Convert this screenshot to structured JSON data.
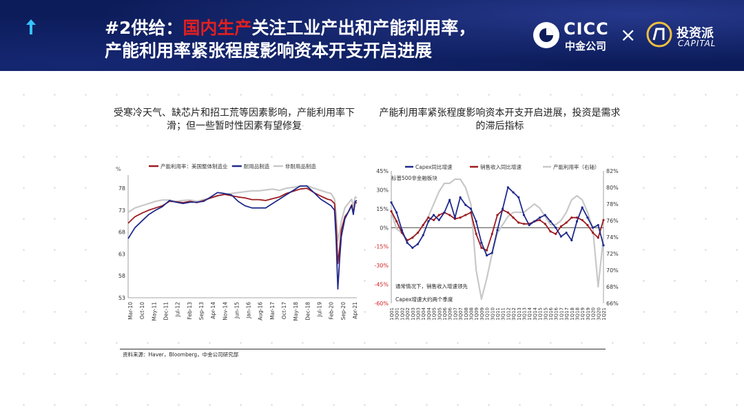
{
  "header": {
    "title_prefix": "#2供给：",
    "title_highlight": "国内生产",
    "title_rest": "关注工业产出和产能利用率，",
    "title_line2": "产能利用率紧张程度影响资本开支开启进展",
    "logo_cicc": "CICC",
    "logo_cicc_sub": "中金公司",
    "logo_times": "×",
    "logo_tzp": "投资派",
    "logo_tzp_sub": "CAPITAL"
  },
  "source_note": "资料来源：Haver，Bloomberg，中金公司研究部",
  "chart_data": [
    {
      "type": "line",
      "title": "受寒冷天气、缺芯片和招工荒等因素影响，产能利用率下滑；但一些暂时性因素有望修复",
      "ylabel": "%",
      "ylim": [
        53,
        81
      ],
      "yticks": [
        53,
        58,
        63,
        68,
        73,
        78
      ],
      "x_tick_labels": [
        "Mar-10",
        "Oct-10",
        "May-11",
        "Dec-11",
        "Jul-12",
        "Feb-13",
        "Sep-13",
        "Apr-14",
        "Nov-14",
        "Jun-15",
        "Jan-16",
        "Aug-16",
        "Mar-17",
        "Oct-17",
        "May-18",
        "Dec-18",
        "Jul-19",
        "Feb-20",
        "Sep-20",
        "Apr-21"
      ],
      "x_range": [
        2010.17,
        2021.25
      ],
      "grid": false,
      "legend": "top",
      "series": [
        {
          "name": "产能利用率：美国整体制造业",
          "color": "#9c1b1f",
          "x": [
            2010.17,
            2010.5,
            2010.83,
            2011.17,
            2011.5,
            2011.83,
            2012.17,
            2012.5,
            2012.83,
            2013.17,
            2013.5,
            2013.83,
            2014.17,
            2014.5,
            2014.83,
            2015.17,
            2015.5,
            2015.83,
            2016.17,
            2016.5,
            2016.83,
            2017.17,
            2017.5,
            2017.83,
            2018.17,
            2018.5,
            2018.83,
            2019.17,
            2019.5,
            2019.83,
            2020.0,
            2020.17,
            2020.25,
            2020.33,
            2020.42,
            2020.5,
            2020.67,
            2020.83,
            2021.0,
            2021.08,
            2021.17,
            2021.25
          ],
          "values": [
            70.0,
            71.5,
            72.3,
            73.0,
            73.5,
            74.0,
            75.0,
            74.9,
            74.7,
            75.0,
            74.7,
            75.2,
            75.8,
            76.3,
            76.6,
            76.3,
            76.0,
            75.8,
            75.4,
            75.4,
            75.2,
            75.6,
            76.0,
            76.8,
            77.3,
            77.8,
            78.0,
            77.0,
            76.2,
            75.5,
            75.3,
            74.5,
            69.0,
            60.8,
            64.5,
            68.5,
            71.5,
            72.5,
            74.2,
            72.5,
            74.8,
            74.6
          ]
        },
        {
          "name": "耐用品制造",
          "color": "#1f2a8c",
          "x": [
            2010.17,
            2010.5,
            2010.83,
            2011.17,
            2011.5,
            2011.83,
            2012.17,
            2012.5,
            2012.83,
            2013.17,
            2013.5,
            2013.83,
            2014.17,
            2014.5,
            2014.83,
            2015.17,
            2015.5,
            2015.83,
            2016.17,
            2016.5,
            2016.83,
            2017.17,
            2017.5,
            2017.83,
            2018.17,
            2018.5,
            2018.83,
            2019.17,
            2019.5,
            2019.83,
            2020.0,
            2020.17,
            2020.25,
            2020.33,
            2020.42,
            2020.5,
            2020.67,
            2020.83,
            2021.0,
            2021.08,
            2021.17,
            2021.25
          ],
          "values": [
            66.5,
            69.0,
            70.5,
            72.0,
            73.0,
            73.8,
            75.2,
            74.8,
            74.5,
            74.8,
            74.8,
            75.0,
            76.0,
            77.0,
            76.8,
            76.5,
            75.0,
            74.0,
            73.5,
            73.5,
            73.5,
            74.5,
            75.5,
            76.5,
            77.5,
            78.5,
            78.5,
            77.0,
            75.5,
            74.5,
            74.0,
            73.0,
            66.0,
            55.0,
            62.0,
            67.0,
            71.0,
            72.5,
            74.0,
            72.0,
            75.0,
            75.2
          ]
        },
        {
          "name": "非耐用品制造",
          "color": "#c8c8c8",
          "x": [
            2010.17,
            2010.5,
            2010.83,
            2011.17,
            2011.5,
            2011.83,
            2012.17,
            2012.5,
            2012.83,
            2013.17,
            2013.5,
            2013.83,
            2014.17,
            2014.5,
            2014.83,
            2015.17,
            2015.5,
            2015.83,
            2016.17,
            2016.5,
            2016.83,
            2017.17,
            2017.5,
            2017.83,
            2018.17,
            2018.5,
            2018.83,
            2019.17,
            2019.5,
            2019.83,
            2020.0,
            2020.17,
            2020.25,
            2020.33,
            2020.42,
            2020.5,
            2020.67,
            2020.83,
            2021.0,
            2021.08,
            2021.17,
            2021.25
          ],
          "values": [
            72.5,
            73.5,
            74.0,
            74.5,
            75.0,
            75.3,
            75.3,
            75.0,
            75.2,
            75.3,
            75.0,
            75.4,
            75.8,
            76.2,
            76.6,
            76.8,
            77.0,
            77.2,
            77.4,
            77.4,
            77.6,
            77.8,
            77.5,
            78.0,
            78.2,
            78.5,
            78.6,
            78.0,
            77.5,
            77.0,
            76.8,
            75.5,
            72.0,
            66.0,
            68.0,
            70.5,
            73.5,
            74.5,
            75.5,
            73.8,
            76.0,
            75.8
          ]
        }
      ]
    },
    {
      "type": "line",
      "title": "产能利用率紧张程度影响资本开支开启进展，投资是需求的滞后指标",
      "subtitle_label": "标普500非金融板块",
      "ylim": [
        -0.6,
        0.45
      ],
      "yticks": [
        "-60%",
        "-45%",
        "-30%",
        "-15%",
        "0%",
        "15%",
        "30%",
        "45%"
      ],
      "ylim_right": [
        0.66,
        0.82
      ],
      "yticks_right": [
        "66%",
        "68%",
        "70%",
        "72%",
        "74%",
        "76%",
        "78%",
        "80%",
        "82%"
      ],
      "x_tick_labels": [
        "1Q01",
        "3Q01",
        "1Q02",
        "3Q02",
        "1Q03",
        "3Q03",
        "1Q04",
        "3Q04",
        "1Q05",
        "3Q05",
        "1Q06",
        "3Q06",
        "1Q07",
        "3Q07",
        "1Q08",
        "3Q08",
        "1Q09",
        "3Q09",
        "1Q10",
        "3Q10",
        "1Q11",
        "3Q11",
        "1Q12",
        "3Q12",
        "1Q13",
        "3Q13",
        "1Q14",
        "3Q14",
        "1Q15",
        "3Q15",
        "1Q16",
        "3Q16",
        "1Q17",
        "3Q17",
        "1Q18",
        "3Q18",
        "1Q19",
        "3Q19",
        "1Q20",
        "3Q20",
        "1Q21"
      ],
      "grid": false,
      "legend": "top",
      "annotations": [
        "通常情况下，销售收入增速领先",
        "Capex增速大约两个季度"
      ],
      "series": [
        {
          "name": "Capex同比增速",
          "axis": "left",
          "color": "#1f2a8c",
          "values": [
            0.2,
            0.12,
            -0.02,
            -0.12,
            -0.16,
            -0.13,
            -0.06,
            0.05,
            0.1,
            0.06,
            0.12,
            0.22,
            0.08,
            0.24,
            0.18,
            0.15,
            0.05,
            -0.12,
            -0.22,
            -0.2,
            -0.02,
            0.15,
            0.32,
            0.28,
            0.24,
            0.1,
            0.02,
            0.05,
            0.08,
            0.1,
            0.05,
            0.0,
            -0.07,
            -0.04,
            -0.1,
            0.05,
            0.16,
            0.08,
            0.0,
            0.02,
            -0.14
          ]
        },
        {
          "name": "销售收入同比增速",
          "axis": "left",
          "color": "#9c1b1f",
          "values": [
            0.13,
            0.05,
            -0.04,
            -0.1,
            -0.08,
            -0.04,
            0.02,
            0.08,
            0.06,
            0.1,
            0.12,
            0.1,
            0.07,
            0.08,
            0.1,
            0.12,
            -0.05,
            -0.16,
            -0.18,
            -0.05,
            0.1,
            0.14,
            0.12,
            0.08,
            0.04,
            0.03,
            0.03,
            0.05,
            0.06,
            0.03,
            -0.03,
            -0.05,
            0.01,
            0.04,
            0.08,
            0.08,
            0.06,
            0.02,
            -0.04,
            -0.08,
            0.06
          ]
        },
        {
          "name": "产能利用率（右轴）",
          "axis": "right",
          "color": "#c8c8c8",
          "values": [
            0.77,
            0.75,
            0.745,
            0.735,
            0.74,
            0.745,
            0.755,
            0.765,
            0.78,
            0.795,
            0.805,
            0.805,
            0.81,
            0.81,
            0.8,
            0.78,
            0.7,
            0.665,
            0.69,
            0.72,
            0.745,
            0.755,
            0.765,
            0.77,
            0.77,
            0.77,
            0.775,
            0.78,
            0.775,
            0.765,
            0.755,
            0.755,
            0.76,
            0.77,
            0.785,
            0.79,
            0.785,
            0.77,
            0.75,
            0.68,
            0.74
          ]
        }
      ]
    }
  ]
}
